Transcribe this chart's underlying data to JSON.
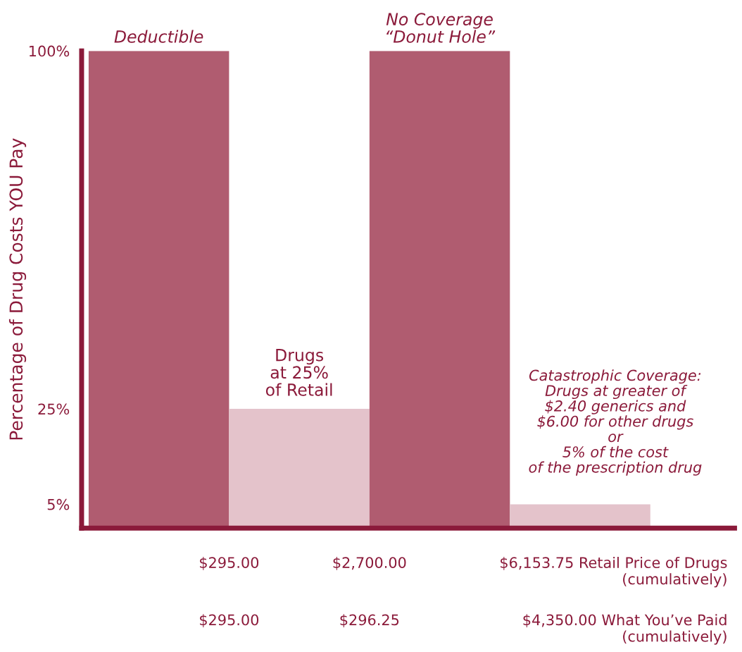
{
  "chart_data": {
    "type": "bar",
    "categories": [
      "Deductible",
      "Drugs\nat 25%\nof Retail",
      "No Coverage\n“Donut Hole”",
      "Catastrophic Coverage:\nDrugs at greater of\n$2.40 generics and\n$6.00 for other drugs\nor\n5% of the cost\nof the prescription drug"
    ],
    "values": [
      100,
      25,
      100,
      5
    ],
    "colors": [
      "#b05c70",
      "#e4c3cb",
      "#b05c70",
      "#e4c3cb"
    ],
    "ylabel": "Percentage of Drug Costs YOU Pay",
    "ylim": [
      0,
      100
    ],
    "yticks": [
      {
        "value": 100,
        "label": "100%"
      },
      {
        "value": 25,
        "label": "25%"
      },
      {
        "value": 5,
        "label": "5%"
      }
    ],
    "annotations": [
      "$295.00",
      "$2,700.00",
      "$6,153.75 Retail Price of Drugs\n(cumulatively)",
      "$295.00",
      "$296.25",
      "$4,350.00 What You’ve Paid\n(cumulatively)"
    ],
    "grid": false
  }
}
